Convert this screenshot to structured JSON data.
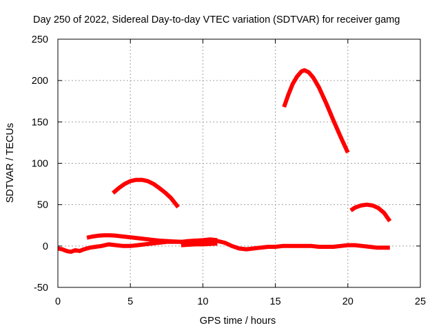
{
  "chart_data": {
    "type": "line",
    "title": "Day 250 of 2022, Sidereal Day-to-day VTEC variation (SDTVAR) for receiver gamg",
    "xlabel": "GPS time / hours",
    "ylabel": "SDTVAR / TECUs",
    "xlim": [
      0,
      25
    ],
    "ylim": [
      -50,
      250
    ],
    "xticks": [
      "0",
      "5",
      "10",
      "15",
      "20",
      "25"
    ],
    "yticks": [
      "-50",
      "0",
      "50",
      "100",
      "150",
      "200",
      "250"
    ],
    "grid": true,
    "series_color": "#ff0000",
    "series": [
      {
        "name": "arc-a",
        "points": [
          [
            3.8,
            64
          ],
          [
            4.2,
            70
          ],
          [
            4.6,
            75
          ],
          [
            5.0,
            78.5
          ],
          [
            5.4,
            80
          ],
          [
            5.8,
            80
          ],
          [
            6.2,
            78.5
          ],
          [
            6.6,
            75
          ],
          [
            7.0,
            70
          ],
          [
            7.4,
            64.5
          ],
          [
            7.8,
            58
          ],
          [
            8.3,
            47
          ]
        ]
      },
      {
        "name": "arc-b",
        "points": [
          [
            15.6,
            168
          ],
          [
            15.9,
            183
          ],
          [
            16.2,
            196
          ],
          [
            16.5,
            205
          ],
          [
            16.8,
            211
          ],
          [
            17.0,
            212.5
          ],
          [
            17.3,
            210
          ],
          [
            17.6,
            204
          ],
          [
            18.0,
            192
          ],
          [
            18.5,
            173
          ],
          [
            19.0,
            152
          ],
          [
            19.5,
            132
          ],
          [
            20.0,
            113
          ]
        ]
      },
      {
        "name": "arc-c",
        "points": [
          [
            20.2,
            43
          ],
          [
            20.5,
            46.5
          ],
          [
            20.9,
            49
          ],
          [
            21.3,
            50
          ],
          [
            21.7,
            49
          ],
          [
            22.1,
            46
          ],
          [
            22.5,
            40
          ],
          [
            22.9,
            30
          ]
        ]
      },
      {
        "name": "arc-d",
        "points": [
          [
            2.0,
            10
          ],
          [
            2.4,
            11.5
          ],
          [
            2.8,
            12.5
          ],
          [
            3.2,
            13
          ],
          [
            3.6,
            13
          ],
          [
            4.0,
            12.5
          ],
          [
            4.5,
            11.5
          ],
          [
            5.0,
            10.5
          ],
          [
            5.5,
            9.5
          ],
          [
            6.0,
            8.5
          ],
          [
            6.5,
            7.5
          ],
          [
            7.0,
            6.5
          ],
          [
            7.5,
            6
          ],
          [
            8.0,
            5.5
          ],
          [
            8.5,
            5
          ]
        ]
      },
      {
        "name": "baseline",
        "points": [
          [
            0.0,
            -3
          ],
          [
            0.3,
            -4
          ],
          [
            0.6,
            -6
          ],
          [
            0.9,
            -7
          ],
          [
            1.2,
            -5
          ],
          [
            1.5,
            -6
          ],
          [
            1.8,
            -4
          ],
          [
            2.2,
            -2
          ],
          [
            2.6,
            -1
          ],
          [
            3.0,
            0
          ],
          [
            3.5,
            2
          ],
          [
            4.0,
            1
          ],
          [
            4.5,
            0
          ],
          [
            5.0,
            0
          ],
          [
            5.5,
            1
          ],
          [
            6.0,
            2
          ],
          [
            6.5,
            3
          ],
          [
            7.0,
            4
          ],
          [
            7.5,
            5
          ],
          [
            8.0,
            5
          ],
          [
            8.5,
            5
          ],
          [
            9.0,
            4
          ],
          [
            9.5,
            4
          ],
          [
            10.0,
            5
          ],
          [
            10.5,
            6
          ],
          [
            11.0,
            6
          ],
          [
            11.5,
            4
          ],
          [
            12.0,
            0
          ],
          [
            12.5,
            -3
          ],
          [
            13.0,
            -4
          ],
          [
            13.5,
            -3
          ],
          [
            14.0,
            -2
          ],
          [
            14.5,
            -1
          ],
          [
            15.0,
            -1
          ],
          [
            15.5,
            0
          ],
          [
            16.0,
            0
          ],
          [
            16.5,
            0
          ],
          [
            17.0,
            0
          ],
          [
            17.5,
            0
          ],
          [
            18.0,
            -1
          ],
          [
            18.5,
            -1
          ],
          [
            19.0,
            -1
          ],
          [
            19.5,
            0
          ],
          [
            20.0,
            1
          ],
          [
            20.5,
            1
          ],
          [
            21.0,
            0
          ],
          [
            21.5,
            -1
          ],
          [
            22.0,
            -2
          ],
          [
            22.5,
            -2
          ],
          [
            22.9,
            -2
          ]
        ]
      },
      {
        "name": "baseline-upper",
        "points": [
          [
            8.5,
            5
          ],
          [
            9.0,
            6
          ],
          [
            9.5,
            6.5
          ],
          [
            10.0,
            7
          ],
          [
            10.5,
            8
          ],
          [
            11.0,
            7
          ]
        ]
      },
      {
        "name": "baseline-lower",
        "points": [
          [
            8.5,
            1
          ],
          [
            9.0,
            1.5
          ],
          [
            9.5,
            2
          ],
          [
            10.0,
            2
          ],
          [
            10.5,
            2.5
          ],
          [
            11.0,
            3
          ]
        ]
      }
    ]
  }
}
